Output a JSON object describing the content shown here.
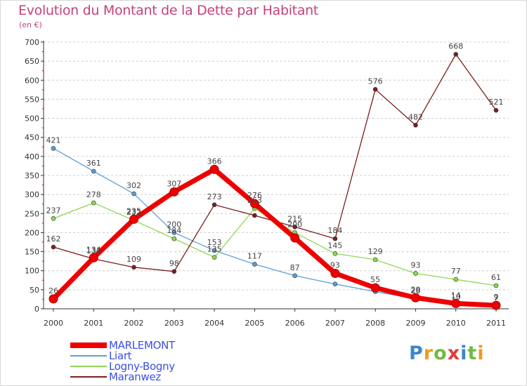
{
  "title": "Evolution du Montant de la Dette par Habitant",
  "subtitle": "(en €)",
  "colors": {
    "title": "#c6417d",
    "legend_text": "#3b4fe0",
    "grid": "#cccccc",
    "axis": "#333333"
  },
  "logo": {
    "text": "Proxiti",
    "letters": [
      "P",
      "r",
      "o",
      "x",
      "i",
      "t",
      "i"
    ],
    "colors": [
      "#3a86d0",
      "#f29a1d",
      "#73b944",
      "#e53b3b",
      "#3a86d0",
      "#73b944",
      "#f29a1d"
    ]
  },
  "chart_data": {
    "type": "line",
    "title": "Evolution du Montant de la Dette par Habitant",
    "subtitle": "(en €)",
    "xlabel": "",
    "ylabel": "",
    "categories": [
      "2000",
      "2001",
      "2002",
      "2003",
      "2004",
      "2005",
      "2006",
      "2007",
      "2008",
      "2009",
      "2010",
      "2011"
    ],
    "ylim": [
      0,
      700
    ],
    "yticks": [
      0,
      50,
      100,
      150,
      200,
      250,
      300,
      350,
      400,
      450,
      500,
      550,
      600,
      650,
      700
    ],
    "grid": "horizontal",
    "legend_position": "bottom-left",
    "series": [
      {
        "name": "MARLEMONT",
        "color": "#ee0000",
        "emphasis": true,
        "values": [
          26,
          134,
          235,
          307,
          366,
          276,
          186,
          93,
          55,
          29,
          14,
          9
        ],
        "labels": [
          "26",
          "134",
          "235",
          "307",
          "366",
          "276",
          "",
          "93",
          "55",
          "29",
          "14",
          "9"
        ]
      },
      {
        "name": "Liart",
        "color": "#5b9fd8",
        "values": [
          421,
          361,
          302,
          200,
          153,
          117,
          87,
          65,
          45,
          26,
          10,
          7
        ],
        "labels": [
          "421",
          "361",
          "302",
          "200",
          "153",
          "117",
          "87",
          "",
          "",
          "26",
          "10",
          "7"
        ]
      },
      {
        "name": "Logny-Bogny",
        "color": "#8fd656",
        "values": [
          237,
          278,
          232,
          184,
          135,
          263,
          200,
          145,
          129,
          93,
          77,
          61
        ],
        "labels": [
          "237",
          "278",
          "232",
          "184",
          "135",
          "263",
          "200",
          "145",
          "129",
          "93",
          "77",
          "61"
        ]
      },
      {
        "name": "Maranwez",
        "color": "#7c1e1e",
        "values": [
          162,
          131,
          109,
          98,
          273,
          245,
          215,
          184,
          576,
          482,
          668,
          521
        ],
        "labels": [
          "162",
          "131",
          "109",
          "98",
          "273",
          "",
          "215",
          "184",
          "576",
          "482",
          "668",
          "521"
        ]
      }
    ]
  }
}
